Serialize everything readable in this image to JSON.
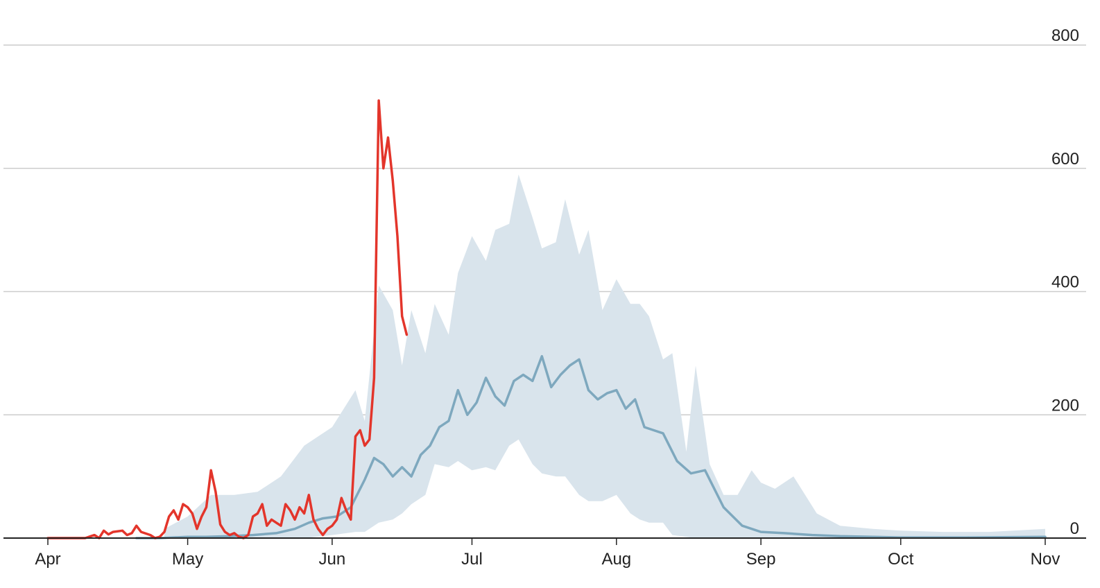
{
  "chart_data": {
    "type": "line",
    "title": "",
    "xlabel": "",
    "ylabel": "",
    "ylim": [
      0,
      800
    ],
    "xlim": [
      "2020-04-01",
      "2020-11-01"
    ],
    "grid": true,
    "y_ticks": [
      0,
      200,
      400,
      600,
      800
    ],
    "x_ticks": [
      {
        "date": "2020-04-01",
        "label": "Apr"
      },
      {
        "date": "2020-05-01",
        "label": "May"
      },
      {
        "date": "2020-06-01",
        "label": "Jun"
      },
      {
        "date": "2020-07-01",
        "label": "Jul"
      },
      {
        "date": "2020-08-01",
        "label": "Aug"
      },
      {
        "date": "2020-09-01",
        "label": "Sep"
      },
      {
        "date": "2020-10-01",
        "label": "Oct"
      },
      {
        "date": "2020-11-01",
        "label": "Nov"
      }
    ],
    "colors": {
      "band": "#d9e4ec",
      "average_line": "#7ea8be",
      "current_line": "#e3352b",
      "grid": "#cccccc",
      "axis": "#222222"
    },
    "series": [
      {
        "kind": "band",
        "x": [
          "2020-04-26",
          "2020-05-01",
          "2020-05-06",
          "2020-05-11",
          "2020-05-16",
          "2020-05-21",
          "2020-05-26",
          "2020-06-01",
          "2020-06-06",
          "2020-06-08",
          "2020-06-11",
          "2020-06-14",
          "2020-06-16",
          "2020-06-18",
          "2020-06-21",
          "2020-06-23",
          "2020-06-26",
          "2020-06-28",
          "2020-07-01",
          "2020-07-04",
          "2020-07-06",
          "2020-07-09",
          "2020-07-11",
          "2020-07-14",
          "2020-07-16",
          "2020-07-19",
          "2020-07-21",
          "2020-07-24",
          "2020-07-26",
          "2020-07-29",
          "2020-08-01",
          "2020-08-04",
          "2020-08-06",
          "2020-08-08",
          "2020-08-11",
          "2020-08-13",
          "2020-08-16",
          "2020-08-18",
          "2020-08-21",
          "2020-08-24",
          "2020-08-27",
          "2020-08-30",
          "2020-09-01",
          "2020-09-04",
          "2020-09-08",
          "2020-09-13",
          "2020-09-18",
          "2020-09-25",
          "2020-10-01",
          "2020-10-10",
          "2020-10-20",
          "2020-11-01"
        ],
        "upper": [
          15,
          35,
          70,
          70,
          75,
          100,
          150,
          180,
          240,
          190,
          410,
          370,
          280,
          370,
          300,
          380,
          330,
          430,
          490,
          450,
          500,
          510,
          590,
          520,
          470,
          480,
          550,
          460,
          500,
          370,
          420,
          380,
          380,
          360,
          290,
          300,
          140,
          280,
          120,
          70,
          70,
          110,
          90,
          80,
          100,
          40,
          20,
          15,
          12,
          10,
          10,
          15
        ],
        "lower": [
          0,
          0,
          0,
          0,
          0,
          0,
          0,
          5,
          10,
          10,
          25,
          30,
          40,
          55,
          70,
          120,
          115,
          125,
          110,
          115,
          110,
          150,
          160,
          120,
          105,
          100,
          100,
          70,
          60,
          60,
          70,
          40,
          30,
          25,
          25,
          5,
          2,
          0,
          0,
          0,
          0,
          0,
          0,
          0,
          0,
          0,
          0,
          0,
          0,
          0,
          0,
          0
        ]
      },
      {
        "kind": "line",
        "x": [
          "2020-04-20",
          "2020-04-25",
          "2020-05-01",
          "2020-05-05",
          "2020-05-10",
          "2020-05-15",
          "2020-05-20",
          "2020-05-24",
          "2020-05-27",
          "2020-05-30",
          "2020-06-02",
          "2020-06-05",
          "2020-06-08",
          "2020-06-10",
          "2020-06-12",
          "2020-06-14",
          "2020-06-16",
          "2020-06-18",
          "2020-06-20",
          "2020-06-22",
          "2020-06-24",
          "2020-06-26",
          "2020-06-28",
          "2020-06-30",
          "2020-07-02",
          "2020-07-04",
          "2020-07-06",
          "2020-07-08",
          "2020-07-10",
          "2020-07-12",
          "2020-07-14",
          "2020-07-16",
          "2020-07-18",
          "2020-07-20",
          "2020-07-22",
          "2020-07-24",
          "2020-07-26",
          "2020-07-28",
          "2020-07-30",
          "2020-08-01",
          "2020-08-03",
          "2020-08-05",
          "2020-08-07",
          "2020-08-09",
          "2020-08-11",
          "2020-08-14",
          "2020-08-17",
          "2020-08-20",
          "2020-08-24",
          "2020-08-28",
          "2020-09-01",
          "2020-09-06",
          "2020-09-12",
          "2020-09-18",
          "2020-09-25",
          "2020-10-01",
          "2020-10-15",
          "2020-11-01"
        ],
        "values": [
          0,
          0,
          2,
          2,
          3,
          5,
          8,
          15,
          25,
          32,
          35,
          50,
          95,
          130,
          120,
          100,
          115,
          100,
          135,
          150,
          180,
          190,
          240,
          200,
          220,
          260,
          230,
          215,
          255,
          265,
          255,
          295,
          245,
          265,
          280,
          290,
          240,
          225,
          235,
          240,
          210,
          225,
          180,
          175,
          170,
          125,
          105,
          110,
          50,
          20,
          10,
          8,
          5,
          3,
          2,
          1,
          1,
          2
        ]
      },
      {
        "kind": "line",
        "x": [
          "2020-04-01",
          "2020-04-03",
          "2020-04-06",
          "2020-04-09",
          "2020-04-11",
          "2020-04-12",
          "2020-04-13",
          "2020-04-14",
          "2020-04-15",
          "2020-04-17",
          "2020-04-18",
          "2020-04-19",
          "2020-04-20",
          "2020-04-21",
          "2020-04-23",
          "2020-04-24",
          "2020-04-25",
          "2020-04-26",
          "2020-04-27",
          "2020-04-28",
          "2020-04-29",
          "2020-04-30",
          "2020-05-01",
          "2020-05-02",
          "2020-05-03",
          "2020-05-04",
          "2020-05-05",
          "2020-05-06",
          "2020-05-07",
          "2020-05-08",
          "2020-05-09",
          "2020-05-10",
          "2020-05-11",
          "2020-05-12",
          "2020-05-13",
          "2020-05-14",
          "2020-05-15",
          "2020-05-16",
          "2020-05-17",
          "2020-05-18",
          "2020-05-19",
          "2020-05-20",
          "2020-05-21",
          "2020-05-22",
          "2020-05-23",
          "2020-05-24",
          "2020-05-25",
          "2020-05-26",
          "2020-05-27",
          "2020-05-28",
          "2020-05-29",
          "2020-05-30",
          "2020-05-31",
          "2020-06-01",
          "2020-06-02",
          "2020-06-03",
          "2020-06-04",
          "2020-06-05",
          "2020-06-06",
          "2020-06-07",
          "2020-06-08",
          "2020-06-09",
          "2020-06-10",
          "2020-06-11",
          "2020-06-12",
          "2020-06-13",
          "2020-06-14",
          "2020-06-15",
          "2020-06-16",
          "2020-06-17"
        ],
        "values": [
          0,
          0,
          0,
          0,
          5,
          0,
          12,
          6,
          10,
          12,
          5,
          8,
          20,
          10,
          5,
          0,
          2,
          10,
          35,
          45,
          30,
          55,
          50,
          40,
          15,
          35,
          50,
          110,
          75,
          22,
          10,
          5,
          8,
          2,
          0,
          5,
          35,
          40,
          55,
          20,
          30,
          25,
          20,
          55,
          45,
          30,
          50,
          40,
          70,
          30,
          15,
          5,
          15,
          20,
          30,
          65,
          45,
          30,
          165,
          175,
          150,
          160,
          260,
          710,
          600,
          650,
          580,
          490,
          360,
          330
        ]
      }
    ]
  }
}
